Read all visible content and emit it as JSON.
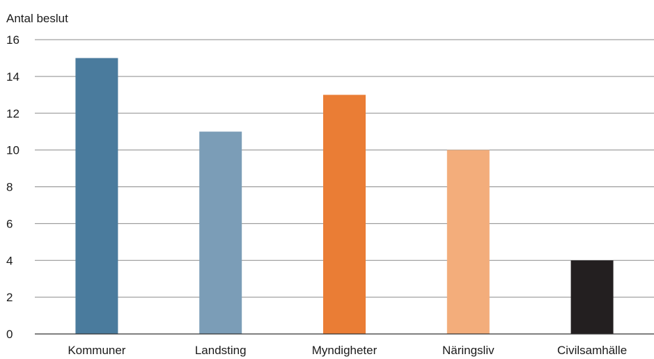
{
  "chart_data": {
    "type": "bar",
    "title": "",
    "xlabel": "",
    "ylabel": "Antal beslut",
    "ylim": [
      0,
      16
    ],
    "yticks": [
      0,
      2,
      4,
      6,
      8,
      10,
      12,
      14,
      16
    ],
    "grid": true,
    "categories": [
      "Kommuner",
      "Landsting",
      "Myndigheter",
      "Näringsliv",
      "Civilsamhälle"
    ],
    "values": [
      15,
      11,
      13,
      10,
      4
    ],
    "colors": [
      "#4a7b9d",
      "#7b9db7",
      "#ea7d35",
      "#f3ad7b",
      "#231f20"
    ]
  }
}
